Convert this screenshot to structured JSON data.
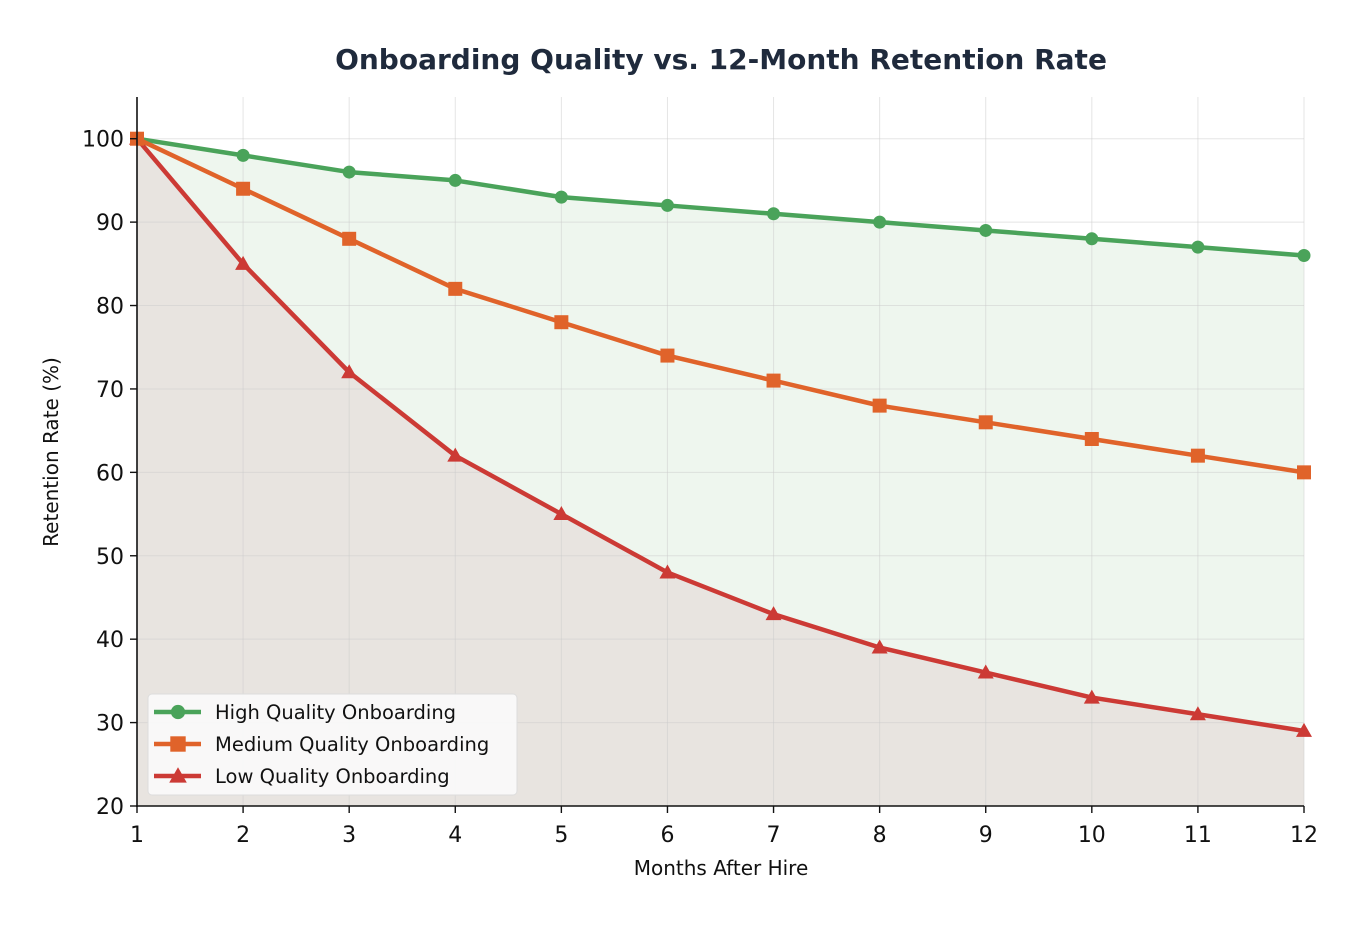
{
  "chart_data": {
    "type": "line",
    "title": "Onboarding Quality vs. 12-Month Retention Rate",
    "xlabel": "Months After Hire",
    "ylabel": "Retention Rate (%)",
    "x": [
      1,
      2,
      3,
      4,
      5,
      6,
      7,
      8,
      9,
      10,
      11,
      12
    ],
    "xlim": [
      1,
      12
    ],
    "ylim": [
      20,
      105
    ],
    "xticks": [
      1,
      2,
      3,
      4,
      5,
      6,
      7,
      8,
      9,
      10,
      11,
      12
    ],
    "yticks": [
      20,
      30,
      40,
      50,
      60,
      70,
      80,
      90,
      100
    ],
    "grid": true,
    "legend_position": "lower-left",
    "series": [
      {
        "name": "High Quality Onboarding",
        "marker": "circle",
        "color": "#4aa35a",
        "values": [
          100,
          98,
          96,
          95,
          93,
          92,
          91,
          90,
          89,
          88,
          87,
          86
        ]
      },
      {
        "name": "Medium Quality Onboarding",
        "marker": "square",
        "color": "#e0632a",
        "values": [
          100,
          94,
          88,
          82,
          78,
          74,
          71,
          68,
          66,
          64,
          62,
          60
        ]
      },
      {
        "name": "Low Quality Onboarding",
        "marker": "triangle",
        "color": "#cc3a35",
        "values": [
          100,
          85,
          72,
          62,
          55,
          48,
          43,
          39,
          36,
          33,
          31,
          29
        ]
      }
    ],
    "fills": {
      "between_high_and_low": "#eef6ee",
      "below_low": "#e8e4e0"
    }
  }
}
